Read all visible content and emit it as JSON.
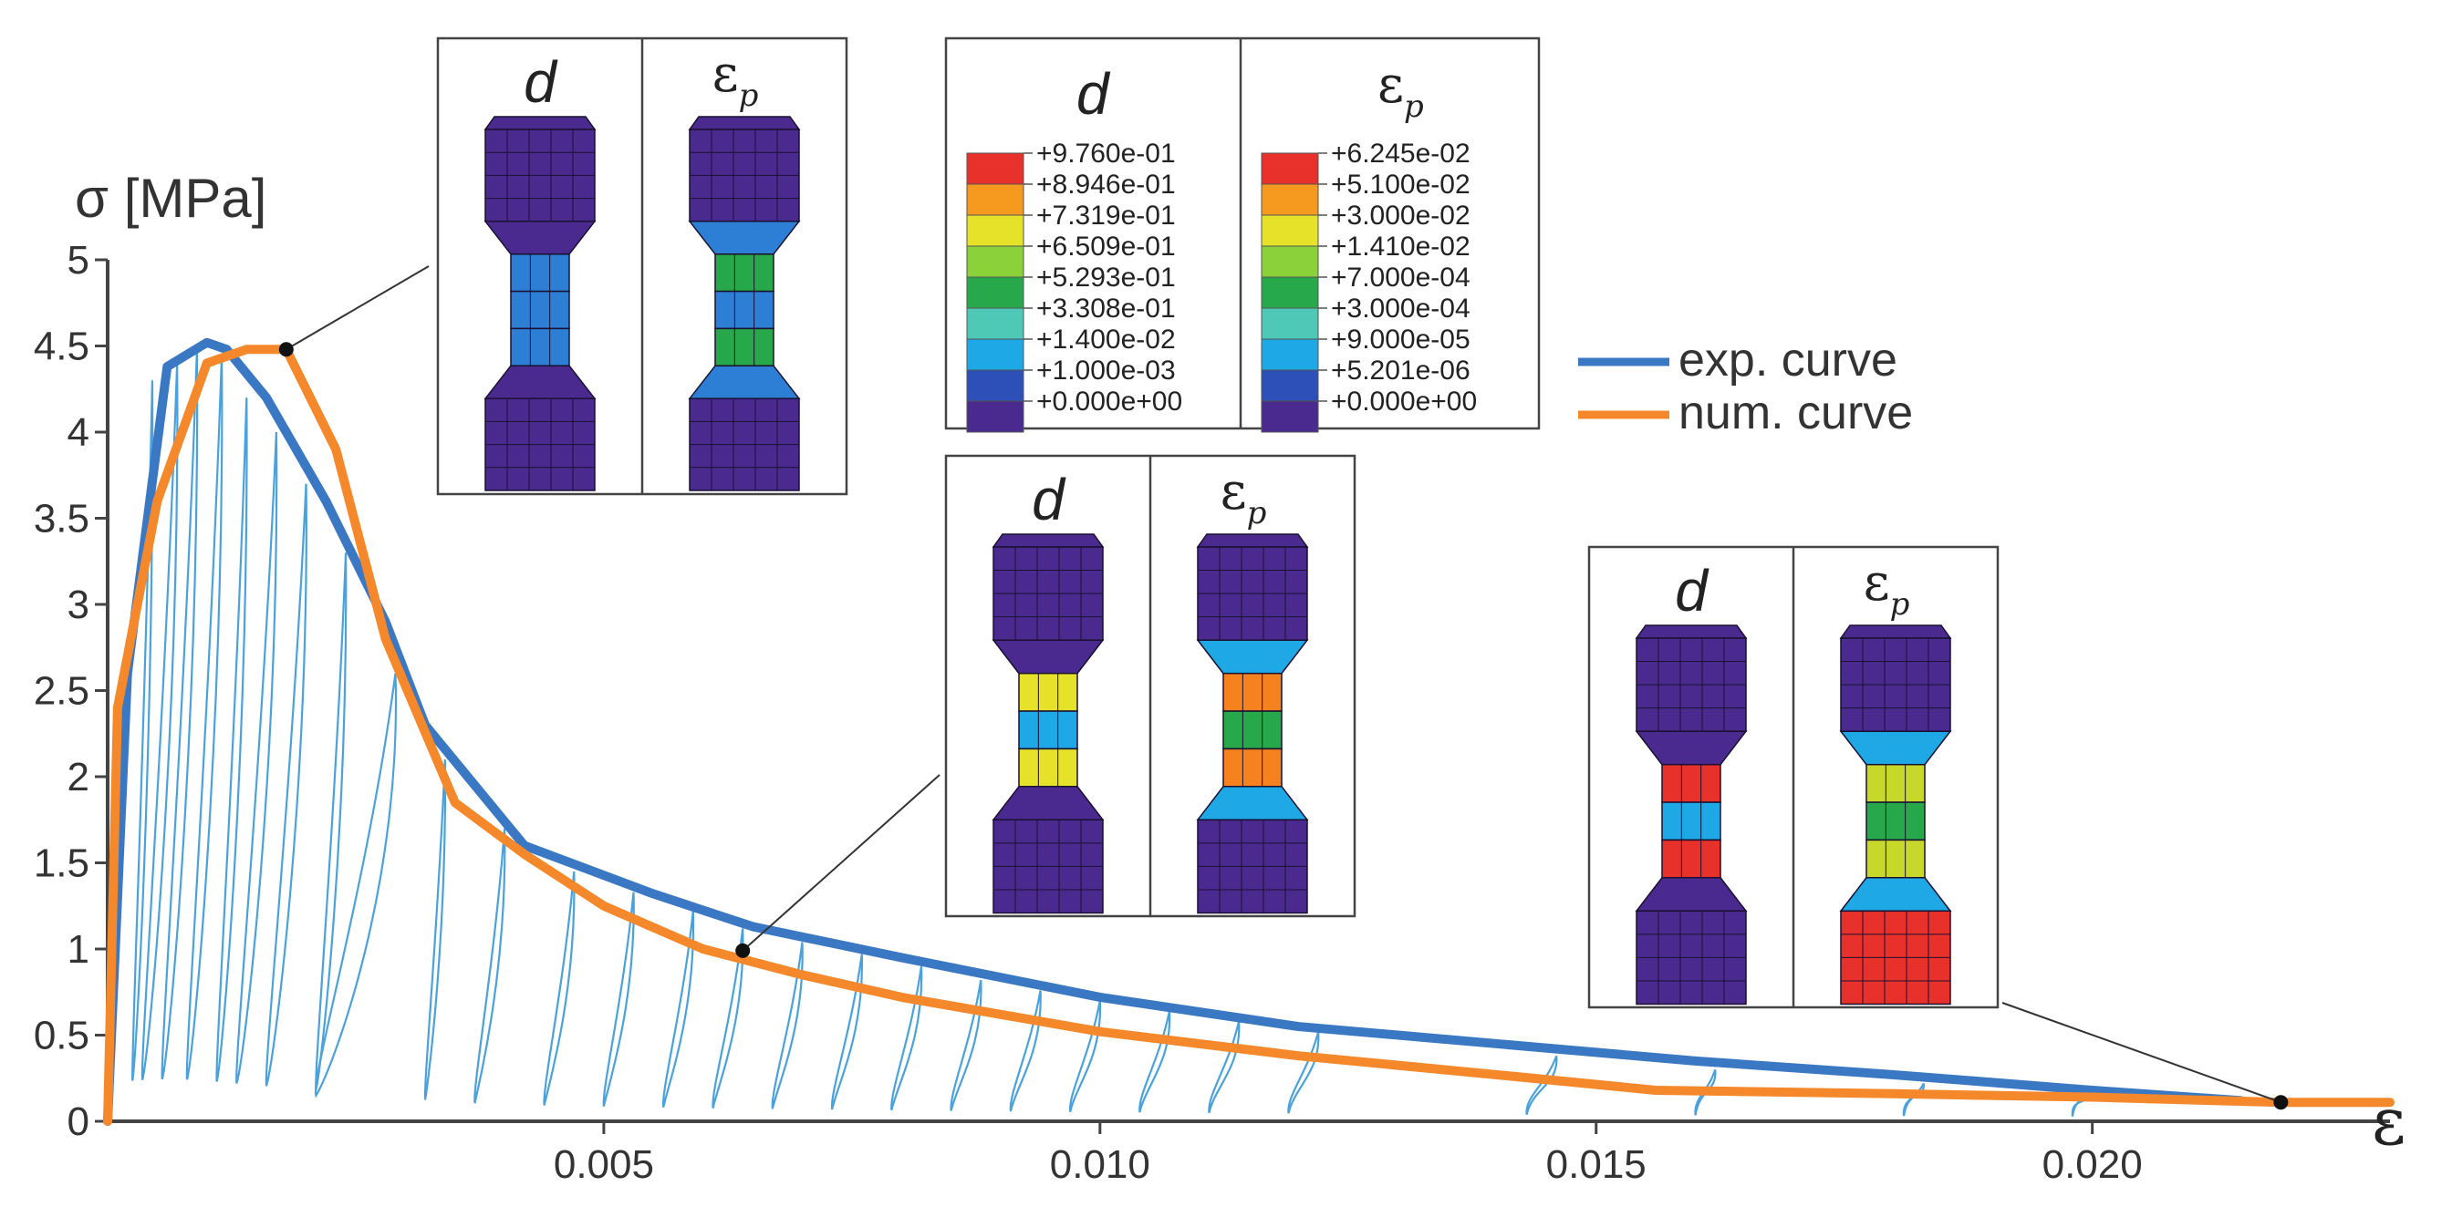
{
  "chart_data": {
    "type": "line",
    "title": "",
    "xlabel": "ε",
    "ylabel": "σ [MPa]",
    "xlim": [
      0,
      0.023
    ],
    "ylim": [
      0,
      5
    ],
    "xticks": [
      0.005,
      0.01,
      0.015,
      0.02
    ],
    "xtick_labels": [
      "0.005",
      "0.010",
      "0.015",
      "0.020"
    ],
    "yticks": [
      0,
      0.5,
      1,
      1.5,
      2,
      2.5,
      3,
      3.5,
      4,
      4.5,
      5
    ],
    "ytick_labels": [
      "0",
      "0.5",
      "1",
      "1.5",
      "2",
      "2.5",
      "3",
      "3.5",
      "4",
      "4.5",
      "5"
    ],
    "legend_position": "right",
    "series": [
      {
        "name": "exp. curve",
        "color": "#3b78c4",
        "x": [
          0.0,
          0.0002,
          0.0006,
          0.001,
          0.0012,
          0.0016,
          0.0022,
          0.0028,
          0.0032,
          0.0042,
          0.0055,
          0.0065,
          0.008,
          0.01,
          0.012,
          0.014,
          0.016,
          0.018,
          0.02,
          0.0215
        ],
        "y": [
          0.0,
          2.6,
          4.38,
          4.52,
          4.48,
          4.2,
          3.6,
          2.9,
          2.3,
          1.6,
          1.32,
          1.13,
          0.95,
          0.72,
          0.55,
          0.45,
          0.35,
          0.27,
          0.18,
          0.12
        ]
      },
      {
        "name": "num. curve",
        "color": "#f5882a",
        "x": [
          0.0,
          0.0001,
          0.0005,
          0.001,
          0.0014,
          0.0018,
          0.0023,
          0.0028,
          0.0035,
          0.0042,
          0.005,
          0.006,
          0.007,
          0.008,
          0.01,
          0.012,
          0.014,
          0.0156,
          0.018,
          0.02,
          0.0219,
          0.023
        ],
        "y": [
          0.0,
          2.4,
          3.6,
          4.4,
          4.48,
          4.48,
          3.9,
          2.8,
          1.85,
          1.55,
          1.25,
          1.0,
          0.85,
          0.72,
          0.52,
          0.38,
          0.27,
          0.18,
          0.16,
          0.14,
          0.11,
          0.11
        ]
      }
    ],
    "unloading_cycles": {
      "name": "exp. unloading/reloading loops",
      "color": "#4aa2dc",
      "peaks": [
        {
          "x": 0.00045,
          "y": 4.3,
          "x0": 0.00025
        },
        {
          "x": 0.0007,
          "y": 4.4,
          "x0": 0.00035
        },
        {
          "x": 0.0009,
          "y": 4.48,
          "x0": 0.00055
        },
        {
          "x": 0.00115,
          "y": 4.45,
          "x0": 0.0008
        },
        {
          "x": 0.0014,
          "y": 4.2,
          "x0": 0.0011
        },
        {
          "x": 0.0017,
          "y": 4.0,
          "x0": 0.0013
        },
        {
          "x": 0.002,
          "y": 3.7,
          "x0": 0.0016
        },
        {
          "x": 0.0024,
          "y": 3.3,
          "x0": 0.0021
        },
        {
          "x": 0.0029,
          "y": 2.6,
          "x0": 0.0021
        },
        {
          "x": 0.0034,
          "y": 2.1,
          "x0": 0.0032
        },
        {
          "x": 0.004,
          "y": 1.7,
          "x0": 0.0037
        },
        {
          "x": 0.0047,
          "y": 1.45,
          "x0": 0.0044
        },
        {
          "x": 0.0053,
          "y": 1.33,
          "x0": 0.005
        },
        {
          "x": 0.0059,
          "y": 1.22,
          "x0": 0.0056
        },
        {
          "x": 0.0064,
          "y": 1.12,
          "x0": 0.0061
        },
        {
          "x": 0.007,
          "y": 1.04,
          "x0": 0.0067
        },
        {
          "x": 0.0076,
          "y": 0.97,
          "x0": 0.0073
        },
        {
          "x": 0.0082,
          "y": 0.9,
          "x0": 0.0079
        },
        {
          "x": 0.0088,
          "y": 0.82,
          "x0": 0.0085
        },
        {
          "x": 0.0094,
          "y": 0.76,
          "x0": 0.0091
        },
        {
          "x": 0.01,
          "y": 0.7,
          "x0": 0.0097
        },
        {
          "x": 0.0107,
          "y": 0.64,
          "x0": 0.0104
        },
        {
          "x": 0.0114,
          "y": 0.58,
          "x0": 0.0111
        },
        {
          "x": 0.0122,
          "y": 0.52,
          "x0": 0.0119
        },
        {
          "x": 0.0146,
          "y": 0.38,
          "x0": 0.0143
        },
        {
          "x": 0.0162,
          "y": 0.3,
          "x0": 0.016
        },
        {
          "x": 0.0183,
          "y": 0.22,
          "x0": 0.0181
        },
        {
          "x": 0.02,
          "y": 0.16,
          "x0": 0.0198
        }
      ]
    },
    "marked_points": [
      {
        "x": 0.0018,
        "y": 4.48
      },
      {
        "x": 0.0064,
        "y": 0.99
      },
      {
        "x": 0.0219,
        "y": 0.11
      }
    ]
  },
  "legend": {
    "exp_label": "exp. curve",
    "num_label": "num. curve",
    "exp_color": "#3b78c4",
    "num_color": "#f5882a"
  },
  "colorbar": {
    "d_title": "d",
    "ep_title_base": "ε",
    "ep_title_sub": "p",
    "d_levels": [
      "+9.760e-01",
      "+8.946e-01",
      "+7.319e-01",
      "+6.509e-01",
      "+5.293e-01",
      "+3.308e-01",
      "+1.400e-02",
      "+1.000e-03",
      "+0.000e+00"
    ],
    "ep_levels": [
      "+6.245e-02",
      "+5.100e-02",
      "+3.000e-02",
      "+1.410e-02",
      "+7.000e-04",
      "+3.000e-04",
      "+9.000e-05",
      "+5.201e-06",
      "+0.000e+00"
    ],
    "swatch_colors": [
      "#e8312b",
      "#f59a1e",
      "#e6e22a",
      "#8bd13a",
      "#27a84a",
      "#4ec9b8",
      "#1ea8e6",
      "#2d4fb8",
      "#4b2a90"
    ]
  },
  "insets": [
    {
      "d_title": "d",
      "ep_title_base": "ε",
      "ep_title_sub": "p",
      "stage": "peak"
    },
    {
      "d_title": "d",
      "ep_title_base": "ε",
      "ep_title_sub": "p",
      "stage": "softening"
    },
    {
      "d_title": "d",
      "ep_title_base": "ε",
      "ep_title_sub": "p",
      "stage": "failure"
    }
  ]
}
